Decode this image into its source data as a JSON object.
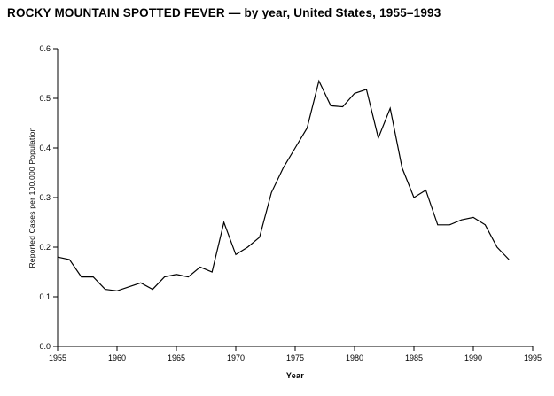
{
  "page": {
    "background": "#ffffff",
    "text_color": "#000000"
  },
  "chart_data": {
    "type": "line",
    "title": "ROCKY MOUNTAIN SPOTTED FEVER — by year, United States, 1955–1993",
    "xlabel": "Year",
    "ylabel": "Reported Cases per 100,000 Population",
    "xlim": [
      1955,
      1995
    ],
    "ylim": [
      0.0,
      0.6
    ],
    "x_ticks": [
      1955,
      1960,
      1965,
      1970,
      1975,
      1980,
      1985,
      1990,
      1995
    ],
    "y_ticks": [
      0.0,
      0.1,
      0.2,
      0.3,
      0.4,
      0.5,
      0.6
    ],
    "grid": false,
    "legend": "none",
    "line_color": "#000000",
    "x": [
      1955,
      1956,
      1957,
      1958,
      1959,
      1960,
      1961,
      1962,
      1963,
      1964,
      1965,
      1966,
      1967,
      1968,
      1969,
      1970,
      1971,
      1972,
      1973,
      1974,
      1975,
      1976,
      1977,
      1978,
      1979,
      1980,
      1981,
      1982,
      1983,
      1984,
      1985,
      1986,
      1987,
      1988,
      1989,
      1990,
      1991,
      1992,
      1993
    ],
    "values": [
      0.18,
      0.175,
      0.14,
      0.14,
      0.115,
      0.112,
      0.12,
      0.128,
      0.115,
      0.14,
      0.145,
      0.14,
      0.16,
      0.15,
      0.25,
      0.185,
      0.2,
      0.22,
      0.31,
      0.36,
      0.4,
      0.44,
      0.535,
      0.485,
      0.483,
      0.51,
      0.518,
      0.42,
      0.48,
      0.36,
      0.3,
      0.315,
      0.245,
      0.245,
      0.255,
      0.26,
      0.245,
      0.2,
      0.175
    ]
  }
}
